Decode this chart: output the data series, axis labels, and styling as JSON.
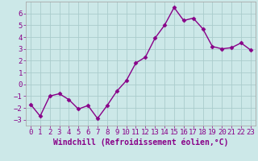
{
  "x": [
    0,
    1,
    2,
    3,
    4,
    5,
    6,
    7,
    8,
    9,
    10,
    11,
    12,
    13,
    14,
    15,
    16,
    17,
    18,
    19,
    20,
    21,
    22,
    23
  ],
  "y": [
    -1.7,
    -2.7,
    -1.0,
    -0.8,
    -1.3,
    -2.1,
    -1.8,
    -2.9,
    -1.8,
    -0.6,
    0.3,
    1.8,
    2.3,
    3.9,
    5.0,
    6.5,
    5.4,
    5.6,
    4.7,
    3.2,
    3.0,
    3.1,
    3.5,
    2.9
  ],
  "line_color": "#880088",
  "marker": "D",
  "marker_size": 2.5,
  "bg_color": "#cce8e8",
  "grid_color": "#aacccc",
  "axis_color": "#aaaaaa",
  "xlabel": "Windchill (Refroidissement éolien,°C)",
  "xlabel_color": "#880088",
  "ylim": [
    -3.5,
    7.0
  ],
  "xlim": [
    -0.5,
    23.5
  ],
  "yticks": [
    -3,
    -2,
    -1,
    0,
    1,
    2,
    3,
    4,
    5,
    6
  ],
  "xticks": [
    0,
    1,
    2,
    3,
    4,
    5,
    6,
    7,
    8,
    9,
    10,
    11,
    12,
    13,
    14,
    15,
    16,
    17,
    18,
    19,
    20,
    21,
    22,
    23
  ],
  "tick_label_color": "#880088",
  "tick_label_fontsize": 6.5,
  "xlabel_fontsize": 7.0,
  "linewidth": 1.0
}
